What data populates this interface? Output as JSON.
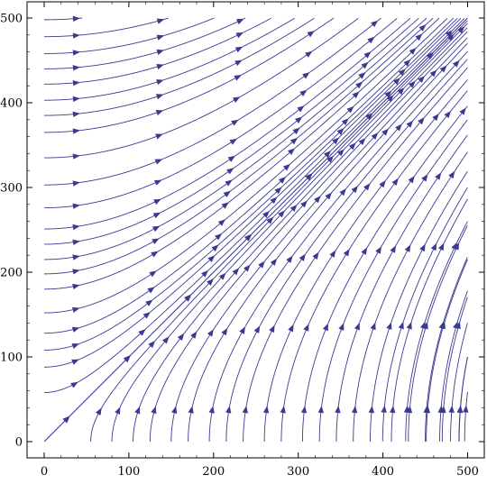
{
  "chart_data": {
    "type": "streamplot",
    "title": "",
    "xlabel": "",
    "ylabel": "",
    "xlim": [
      0,
      500
    ],
    "ylim": [
      0,
      500
    ],
    "x_ticks": [
      0,
      100,
      200,
      300,
      400,
      500
    ],
    "y_ticks": [
      0,
      100,
      200,
      300,
      400,
      500
    ],
    "x_tick_labels": [
      "0",
      "100",
      "200",
      "300",
      "400",
      "500"
    ],
    "y_tick_labels": [
      "0",
      "100",
      "200",
      "300",
      "400",
      "500"
    ],
    "grid": false,
    "color": "#3a3a93",
    "field_description": "x' = y, y' = x",
    "streamlines_from_left_edge_y": [
      58,
      88,
      108,
      128,
      152,
      180,
      198,
      215,
      233,
      251,
      276,
      303,
      335,
      365,
      385,
      403,
      422,
      440,
      458,
      478,
      498
    ],
    "streamlines_from_top_edge_x": [
      55,
      180
    ],
    "streamlines_from_bottom_edge_x": [
      0,
      55,
      80,
      105,
      125,
      150,
      170,
      195,
      215,
      235,
      260,
      280,
      305,
      325,
      345,
      365,
      385,
      410,
      430,
      450,
      470,
      490
    ],
    "streamlines_from_right_edge_y": [
      58,
      100,
      140,
      178,
      215,
      260,
      300
    ]
  }
}
